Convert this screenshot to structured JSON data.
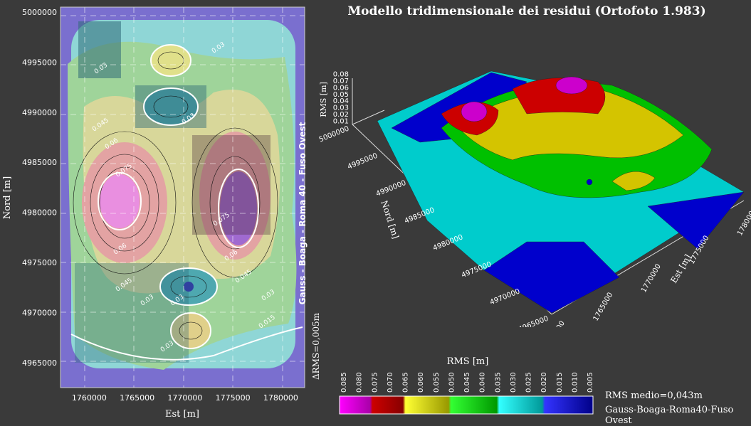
{
  "title": "Modello tridimensionale dei residui (Ortofoto 1.983)",
  "colors": {
    "bg": "#3a3a3a",
    "magenta": "#cc00cc",
    "red": "#cc0000",
    "yellow": "#d4c400",
    "green": "#00c000",
    "cyan": "#00cccc",
    "blue": "#0000bb"
  },
  "chart_data": [
    {
      "type": "heatmap",
      "xlabel": "Est [m]",
      "ylabel": "Nord [m]",
      "x_ticks": [
        "1760000",
        "1765000",
        "1770000",
        "1775000",
        "1780000"
      ],
      "y_ticks": [
        "5000000",
        "4995000",
        "4990000",
        "4985000",
        "4980000",
        "4975000",
        "4970000",
        "4965000"
      ],
      "xlim": [
        1757000,
        1782500
      ],
      "ylim": [
        4962500,
        5000500
      ],
      "grid": true,
      "contour_labels": [
        "0.03",
        "0.03",
        "0.03",
        "0.045",
        "0.06",
        "0.075",
        "0.06",
        "0.075",
        "0.06",
        "0.045",
        "0.045",
        "0.03",
        "0.03",
        "0.015",
        "0.03",
        "0.03"
      ],
      "peaks": [
        {
          "x": 1763000,
          "y": 4981200,
          "value": 0.083
        },
        {
          "x": 1775000,
          "y": 4980500,
          "value": 0.083
        },
        {
          "x": 1768000,
          "y": 4995500,
          "value": 0.055
        },
        {
          "x": 1770000,
          "y": 4967500,
          "value": 0.065
        },
        {
          "x": 1769000,
          "y": 4981000,
          "value": 0.045
        }
      ],
      "lows": [
        {
          "x": 1769000,
          "y": 4989000,
          "value": 0.025
        },
        {
          "x": 1770000,
          "y": 4972500,
          "value": 0.022
        }
      ]
    },
    {
      "type": "surface",
      "title": "Modello tridimensionale dei residui (Ortofoto 1.983)",
      "xlabel": "Est [m]",
      "ylabel": "Nord [m]",
      "zlabel": "RMS [m]",
      "x_ticks": [
        "1760000",
        "1765000",
        "1770000",
        "1775000",
        "1780000"
      ],
      "y_ticks": [
        "4965000",
        "4970000",
        "4975000",
        "4980000",
        "4985000",
        "4990000",
        "4995000",
        "5000000"
      ],
      "z_ticks": [
        "0.01",
        "0.02",
        "0.03",
        "0.04",
        "0.05",
        "0.06",
        "0.07",
        "0.08"
      ],
      "zlim": [
        0.005,
        0.085
      ]
    },
    {
      "type": "colorbar",
      "label": "RMS [m]",
      "ticks": [
        "0.085",
        "0.080",
        "0.075",
        "0.070",
        "0.065",
        "0.060",
        "0.055",
        "0.050",
        "0.045",
        "0.040",
        "0.035",
        "0.030",
        "0.025",
        "0.020",
        "0.015",
        "0.010",
        "0.005"
      ],
      "stops": [
        {
          "from": 0.005,
          "to": 0.015,
          "color": "#0000bb"
        },
        {
          "from": 0.015,
          "to": 0.025,
          "color": "#0000ee"
        },
        {
          "from": 0.025,
          "to": 0.035,
          "color": "#00cccc"
        },
        {
          "from": 0.035,
          "to": 0.045,
          "color": "#00c000"
        },
        {
          "from": 0.045,
          "to": 0.06,
          "color": "#d4c400"
        },
        {
          "from": 0.06,
          "to": 0.075,
          "color": "#cc0000"
        },
        {
          "from": 0.075,
          "to": 0.085,
          "color": "#cc00cc"
        }
      ]
    }
  ],
  "notes": {
    "rms_medio": "RMS medio=0,043m",
    "projection_bottom": "Gauss-Boaga-Roma40-Fuso Ovest",
    "projection_vertical": "Gauss - Boaga - Roma 40 - Fuso Ovest",
    "delta_rms": "ΔRMS=0,005m"
  }
}
